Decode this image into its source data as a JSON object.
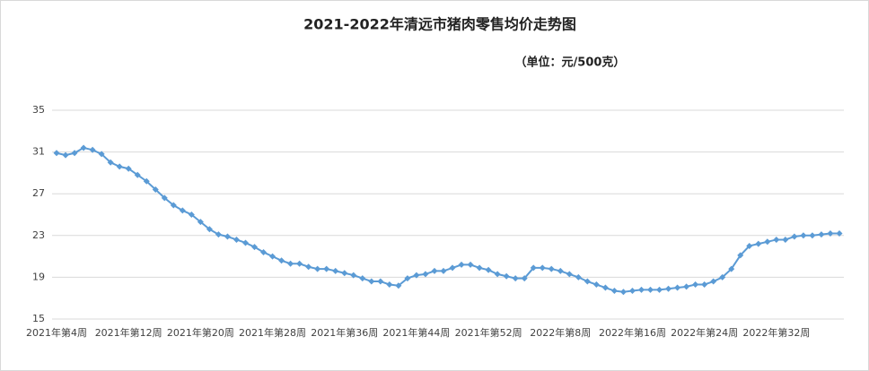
{
  "chart_data": {
    "type": "line",
    "title": "2021-2022年清远市猪肉零售均价走势图",
    "subtitle": "（单位：元/500克）",
    "categories": [
      "2021年第4周",
      null,
      null,
      null,
      null,
      null,
      null,
      null,
      "2021年第12周",
      null,
      null,
      null,
      null,
      null,
      null,
      null,
      "2021年第20周",
      null,
      null,
      null,
      null,
      null,
      null,
      null,
      "2021年第28周",
      null,
      null,
      null,
      null,
      null,
      null,
      null,
      "2021年第36周",
      null,
      null,
      null,
      null,
      null,
      null,
      null,
      "2021年第44周",
      null,
      null,
      null,
      null,
      null,
      null,
      null,
      "2021年第52周",
      null,
      null,
      null,
      null,
      null,
      null,
      null,
      "2022年第8周",
      null,
      null,
      null,
      null,
      null,
      null,
      null,
      "2022年第16周",
      null,
      null,
      null,
      null,
      null,
      null,
      null,
      "2022年第24周",
      null,
      null,
      null,
      null,
      null,
      null,
      null,
      "2022年第32周",
      null,
      null,
      null,
      null,
      null,
      null,
      null
    ],
    "series": [
      {
        "name": "猪肉零售均价",
        "color": "#5b9bd5",
        "values": [
          30.9,
          30.7,
          30.9,
          31.4,
          31.2,
          30.8,
          30.0,
          29.6,
          29.4,
          28.8,
          28.2,
          27.4,
          26.6,
          25.9,
          25.4,
          25.0,
          24.3,
          23.6,
          23.1,
          22.9,
          22.6,
          22.3,
          21.9,
          21.4,
          21.0,
          20.6,
          20.3,
          20.3,
          20.0,
          19.8,
          19.8,
          19.6,
          19.4,
          19.2,
          18.9,
          18.6,
          18.6,
          18.3,
          18.2,
          18.9,
          19.2,
          19.3,
          19.6,
          19.6,
          19.9,
          20.2,
          20.2,
          19.9,
          19.7,
          19.3,
          19.1,
          18.9,
          18.9,
          19.9,
          19.9,
          19.8,
          19.6,
          19.3,
          19.0,
          18.6,
          18.3,
          18.0,
          17.7,
          17.6,
          17.7,
          17.8,
          17.8,
          17.8,
          17.9,
          18.0,
          18.1,
          18.3,
          18.3,
          18.6,
          19.0,
          19.8,
          21.1,
          22.0,
          22.2,
          22.4,
          22.6,
          22.6,
          22.9,
          23.0,
          23.0,
          23.1,
          23.2,
          23.2
        ]
      }
    ],
    "ylim": [
      15,
      35
    ],
    "yticks": [
      15,
      19,
      23,
      27,
      31,
      35
    ],
    "grid": true
  }
}
